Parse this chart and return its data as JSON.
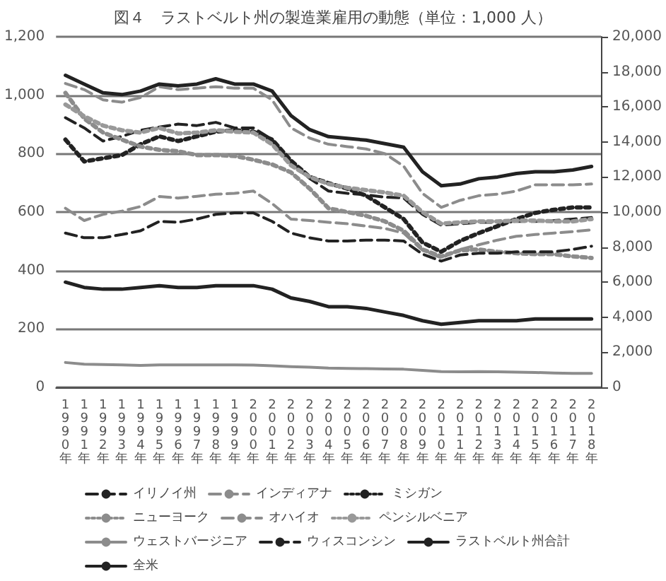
{
  "chart_data": {
    "type": "line",
    "title": "図４　ラストベルト州の製造業雇用の動態（単位：1,000 人）",
    "categories": [
      "1990年",
      "1991年",
      "1992年",
      "1993年",
      "1994年",
      "1995年",
      "1996年",
      "1997年",
      "1998年",
      "1999年",
      "2000年",
      "2001年",
      "2002年",
      "2003年",
      "2004年",
      "2005年",
      "2006年",
      "2007年",
      "2008年",
      "2009年",
      "2010年",
      "2011年",
      "2012年",
      "2013年",
      "2014年",
      "2015年",
      "2016年",
      "2017年",
      "2018年"
    ],
    "ylim": [
      0,
      1200
    ],
    "yticks": [
      0,
      200,
      400,
      600,
      800,
      {
        "value": 1000,
        "label": "1,000"
      },
      {
        "value": 1200,
        "label": "1,200"
      }
    ],
    "y2lim": [
      0,
      20000
    ],
    "y2ticks": [
      0,
      {
        "value": 2000,
        "label": "2,000"
      },
      {
        "value": 4000,
        "label": "4,000"
      },
      {
        "value": 6000,
        "label": "6,000"
      },
      {
        "value": 8000,
        "label": "8,000"
      },
      {
        "value": 10000,
        "label": "10,000"
      },
      {
        "value": 12000,
        "label": "12,000"
      },
      {
        "value": 14000,
        "label": "14,000"
      },
      {
        "value": 16000,
        "label": "16,000"
      },
      {
        "value": 18000,
        "label": "18,000"
      },
      {
        "value": 20000,
        "label": "20,000"
      }
    ],
    "grid": "y",
    "legend": "bottom",
    "marker": "none",
    "series": [
      {
        "name": "イリノイ州",
        "color": "#222222",
        "line_style": "dashed",
        "values": [
          923,
          888,
          843,
          859,
          880,
          891,
          901,
          896,
          907,
          888,
          888,
          848,
          768,
          715,
          672,
          664,
          659,
          651,
          648,
          592,
          555,
          560,
          565,
          565,
          568,
          568,
          571,
          576,
          581
        ]
      },
      {
        "name": "インディアナ",
        "color": "#8c8c8c",
        "line_style": "dashed",
        "values": [
          613,
          571,
          592,
          603,
          619,
          653,
          648,
          654,
          661,
          664,
          672,
          629,
          576,
          571,
          565,
          560,
          552,
          544,
          528,
          469,
          443,
          472,
          488,
          504,
          517,
          523,
          528,
          533,
          539
        ]
      },
      {
        "name": "ミシガン",
        "color": "#222222",
        "line_style": "dotted",
        "values": [
          848,
          773,
          784,
          795,
          832,
          859,
          843,
          859,
          875,
          880,
          875,
          848,
          776,
          720,
          699,
          680,
          656,
          616,
          576,
          496,
          464,
          501,
          528,
          552,
          576,
          597,
          608,
          616,
          616
        ]
      },
      {
        "name": "ニューヨーク",
        "color": "#8c8c8c",
        "line_style": "dotted",
        "values": [
          1008,
          920,
          872,
          848,
          824,
          813,
          808,
          795,
          795,
          792,
          779,
          763,
          736,
          680,
          613,
          600,
          587,
          568,
          536,
          472,
          448,
          469,
          472,
          464,
          459,
          456,
          456,
          448,
          443
        ]
      },
      {
        "name": "オハイオ",
        "color": "#8c8c8c",
        "line_style": "dashed",
        "values": [
          1040,
          1019,
          984,
          976,
          992,
          1029,
          1019,
          1024,
          1029,
          1024,
          1024,
          984,
          888,
          853,
          832,
          824,
          816,
          800,
          757,
          664,
          616,
          640,
          656,
          661,
          672,
          693,
          693,
          693,
          696
        ]
      },
      {
        "name": "ペンシルベニア",
        "color": "#999999",
        "line_style": "dotted",
        "values": [
          968,
          928,
          896,
          880,
          872,
          888,
          869,
          872,
          880,
          875,
          872,
          832,
          760,
          720,
          696,
          683,
          675,
          667,
          656,
          600,
          560,
          565,
          568,
          568,
          571,
          571,
          568,
          568,
          576
        ]
      },
      {
        "name": "ウェストバージニア",
        "color": "#8c8c8c",
        "line_style": "solid",
        "values": [
          85,
          79,
          78,
          77,
          75,
          77,
          77,
          77,
          77,
          77,
          76,
          74,
          71,
          69,
          66,
          65,
          64,
          63,
          62,
          58,
          54,
          53,
          54,
          53,
          52,
          51,
          49,
          48,
          48
        ]
      },
      {
        "name": "ウィスコンシン",
        "color": "#222222",
        "line_style": "dashed",
        "values": [
          528,
          512,
          512,
          523,
          536,
          568,
          565,
          576,
          592,
          597,
          597,
          568,
          528,
          512,
          501,
          501,
          504,
          504,
          501,
          456,
          432,
          453,
          459,
          459,
          464,
          464,
          464,
          472,
          483
        ]
      },
      {
        "name": "ラストベルト州合計",
        "color": "#222222",
        "line_style": "solid",
        "axis": "y2",
        "values": [
          6000,
          5700,
          5600,
          5600,
          5700,
          5800,
          5700,
          5700,
          5800,
          5800,
          5800,
          5600,
          5100,
          4900,
          4600,
          4600,
          4500,
          4300,
          4100,
          3800,
          3600,
          3700,
          3800,
          3800,
          3800,
          3900,
          3900,
          3900,
          3900
        ]
      },
      {
        "name": "全米",
        "color": "#222222",
        "line_style": "solid",
        "axis": "y2",
        "values": [
          17800,
          17300,
          16800,
          16700,
          16900,
          17300,
          17200,
          17300,
          17600,
          17300,
          17300,
          16900,
          15500,
          14700,
          14300,
          14200,
          14100,
          13900,
          13700,
          12300,
          11500,
          11600,
          11900,
          12000,
          12200,
          12300,
          12300,
          12400,
          12600
        ]
      }
    ]
  }
}
